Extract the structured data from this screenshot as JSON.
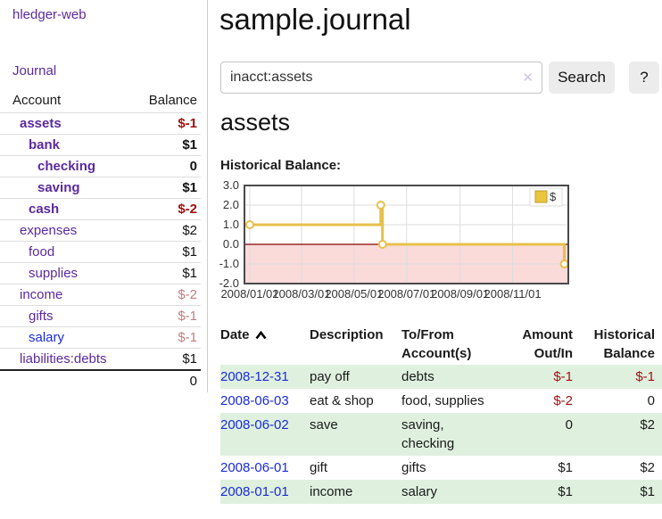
{
  "colors": {
    "link_purple": "#5b2a9e",
    "link_blue": "#1a2bdb",
    "negative_strong": "#a11212",
    "negative_soft": "#c07f7f",
    "row_green": "#dff0df",
    "chart_gold": "#e7c04a"
  },
  "sidebar": {
    "brand": "hledger-web",
    "journal_label": "Journal",
    "accounts_table": {
      "headers": [
        "Account",
        "Balance"
      ],
      "rows": [
        {
          "account": "assets",
          "indent": 0,
          "bold": true,
          "link_color": "purple",
          "balance": "$-1",
          "balance_class": "neg-strong"
        },
        {
          "account": "bank",
          "indent": 1,
          "bold": true,
          "link_color": "purple",
          "balance": "$1",
          "balance_class": "pos"
        },
        {
          "account": "checking",
          "indent": 2,
          "bold": true,
          "link_color": "purple",
          "balance": "0",
          "balance_class": "pos"
        },
        {
          "account": "saving",
          "indent": 2,
          "bold": true,
          "link_color": "purple",
          "balance": "$1",
          "balance_class": "pos"
        },
        {
          "account": "cash",
          "indent": 1,
          "bold": true,
          "link_color": "purple",
          "balance": "$-2",
          "balance_class": "neg-strong"
        },
        {
          "account": "expenses",
          "indent": 0,
          "bold": false,
          "link_color": "purple",
          "balance": "$2",
          "balance_class": "pos"
        },
        {
          "account": "food",
          "indent": 1,
          "bold": false,
          "link_color": "purple",
          "balance": "$1",
          "balance_class": "pos"
        },
        {
          "account": "supplies",
          "indent": 1,
          "bold": false,
          "link_color": "purple",
          "balance": "$1",
          "balance_class": "pos"
        },
        {
          "account": "income",
          "indent": 0,
          "bold": false,
          "link_color": "purple",
          "balance": "$-2",
          "balance_class": "neg-soft"
        },
        {
          "account": "gifts",
          "indent": 1,
          "bold": false,
          "link_color": "purple",
          "balance": "$-1",
          "balance_class": "neg-soft"
        },
        {
          "account": "salary",
          "indent": 1,
          "bold": false,
          "link_color": "blue",
          "balance": "$-1",
          "balance_class": "neg-soft"
        },
        {
          "account": "liabilities:debts",
          "indent": 0,
          "bold": false,
          "link_color": "purple",
          "balance": "$1",
          "balance_class": "pos"
        }
      ],
      "total": "0"
    }
  },
  "main": {
    "title": "sample.journal",
    "search": {
      "value": "inacct:assets",
      "clear_icon": "✕",
      "button_label": "Search",
      "help_label": "?"
    },
    "account_heading": "assets",
    "chart_label": "Historical Balance:"
  },
  "chart_data": {
    "type": "line",
    "title": "Historical Balance",
    "step": "after",
    "legend": [
      {
        "label": "$",
        "color": "#eac63f"
      }
    ],
    "legend_position": "top-right",
    "x_ticks": [
      "2008/01/01",
      "2008/03/01",
      "2008/05/01",
      "2008/07/01",
      "2008/09/01",
      "2008/11/01"
    ],
    "y_ticks": [
      3.0,
      2.0,
      1.0,
      0.0,
      -1.0,
      -2.0
    ],
    "ylim": [
      -2,
      3
    ],
    "xlim": [
      "2008-01-01",
      "2008-12-31"
    ],
    "grid": true,
    "points": [
      {
        "x": "2008-01-01",
        "y": 1
      },
      {
        "x": "2008-06-01",
        "y": 2
      },
      {
        "x": "2008-06-03",
        "y": 0
      },
      {
        "x": "2008-12-31",
        "y": -1
      }
    ],
    "line_color": "#e7c04a",
    "negative_region_fill": "#fbdada",
    "zero_line_color": "#8b0000"
  },
  "register": {
    "headers": [
      {
        "label": "Date",
        "sort_icon": "chevron-up"
      },
      {
        "label": "Description"
      },
      {
        "label": "To/From Account(s)"
      },
      {
        "label": "Amount Out/In",
        "align": "right"
      },
      {
        "label": "Historical Balance",
        "align": "right"
      }
    ],
    "rows": [
      {
        "date": "2008-12-31",
        "description": "pay off",
        "accounts": "debts",
        "amount": "$-1",
        "amount_neg": true,
        "balance": "$-1",
        "balance_neg": true,
        "shaded": true
      },
      {
        "date": "2008-06-03",
        "description": "eat & shop",
        "accounts": "food, supplies",
        "amount": "$-2",
        "amount_neg": true,
        "balance": "0",
        "balance_neg": false,
        "shaded": false
      },
      {
        "date": "2008-06-02",
        "description": "save",
        "accounts": "saving, checking",
        "amount": "0",
        "amount_neg": false,
        "balance": "$2",
        "balance_neg": false,
        "shaded": true
      },
      {
        "date": "2008-06-01",
        "description": "gift",
        "accounts": "gifts",
        "amount": "$1",
        "amount_neg": false,
        "balance": "$2",
        "balance_neg": false,
        "shaded": false
      },
      {
        "date": "2008-01-01",
        "description": "income",
        "accounts": "salary",
        "amount": "$1",
        "amount_neg": false,
        "balance": "$1",
        "balance_neg": false,
        "shaded": true
      }
    ]
  }
}
